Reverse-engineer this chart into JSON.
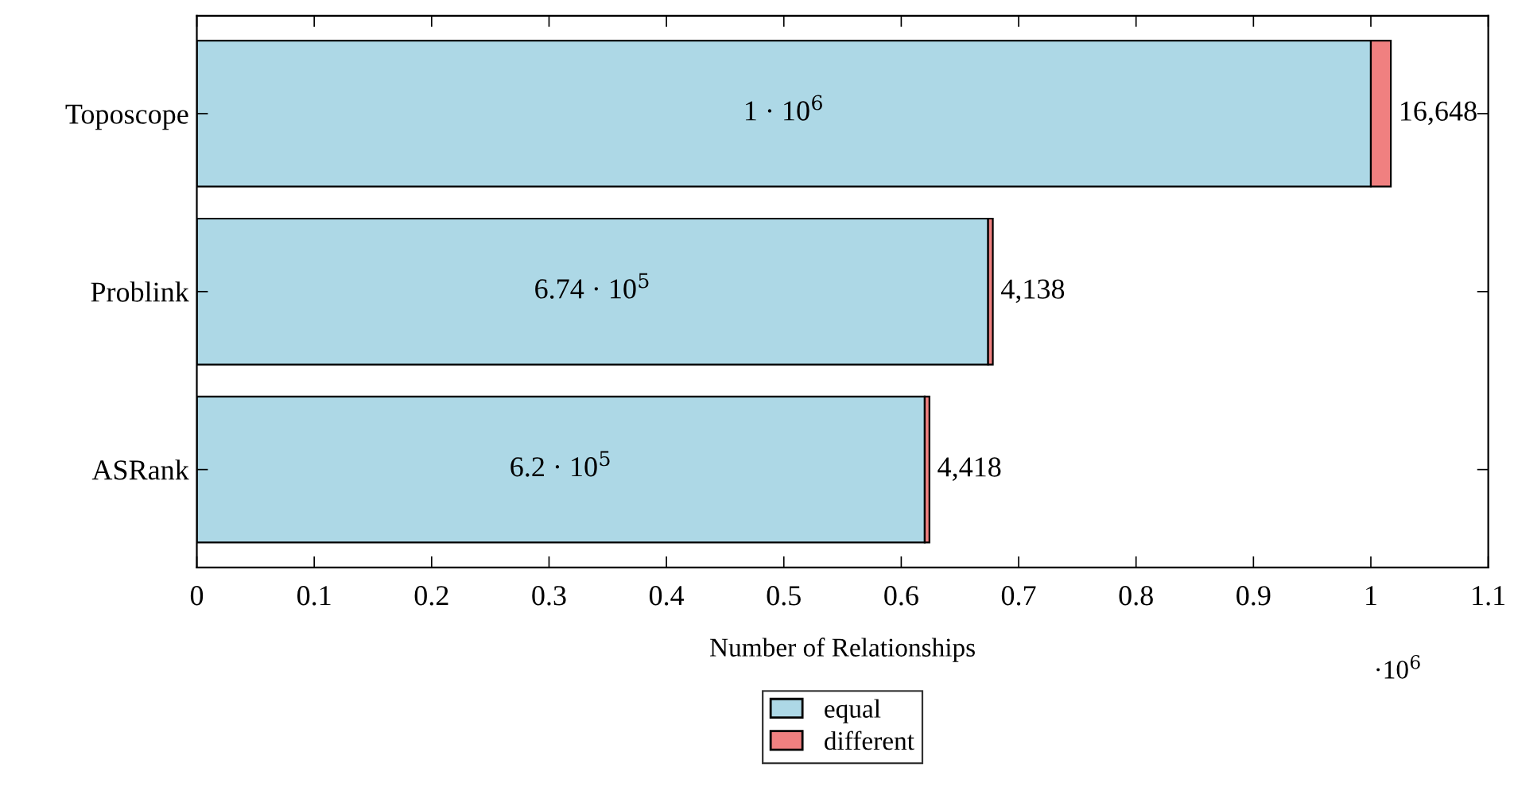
{
  "chart_data": {
    "type": "bar",
    "orientation": "horizontal",
    "stacked": true,
    "xlabel": "Number of Relationships",
    "categories": [
      "Toposcope",
      "Problink",
      "ASRank"
    ],
    "series": [
      {
        "name": "equal",
        "color": "#add8e6",
        "values": [
          1,
          0.674,
          0.62
        ]
      },
      {
        "name": "different",
        "color": "#f08080",
        "values": [
          0.017,
          0.004,
          0.004
        ]
      }
    ],
    "xlim": [
      0,
      1.1
    ],
    "xticks": [
      0,
      0.1,
      0.2,
      0.3,
      0.4,
      0.5,
      0.6,
      0.7,
      0.8,
      0.9,
      1,
      1.1
    ],
    "annotations": [
      "·10$^{6}$",
      {
        "text": "1 · 10$^{6}$",
        "x": 0.5,
        "y": "Toposcope"
      },
      {
        "text": "6.74 · 10$^{5}$",
        "x": 0.337,
        "y": "Problink"
      },
      {
        "text": "6.2 · 10$^{5}$",
        "x": 0.31,
        "y": "ASRank"
      },
      {
        "text": "16,648",
        "x": 1.017,
        "y": "Toposcope"
      },
      {
        "text": "4,138",
        "x": 0.678,
        "y": "Problink"
      },
      {
        "text": "4,418",
        "x": 0.624,
        "y": "ASRank"
      }
    ],
    "legend": "bottom",
    "grid": false
  }
}
